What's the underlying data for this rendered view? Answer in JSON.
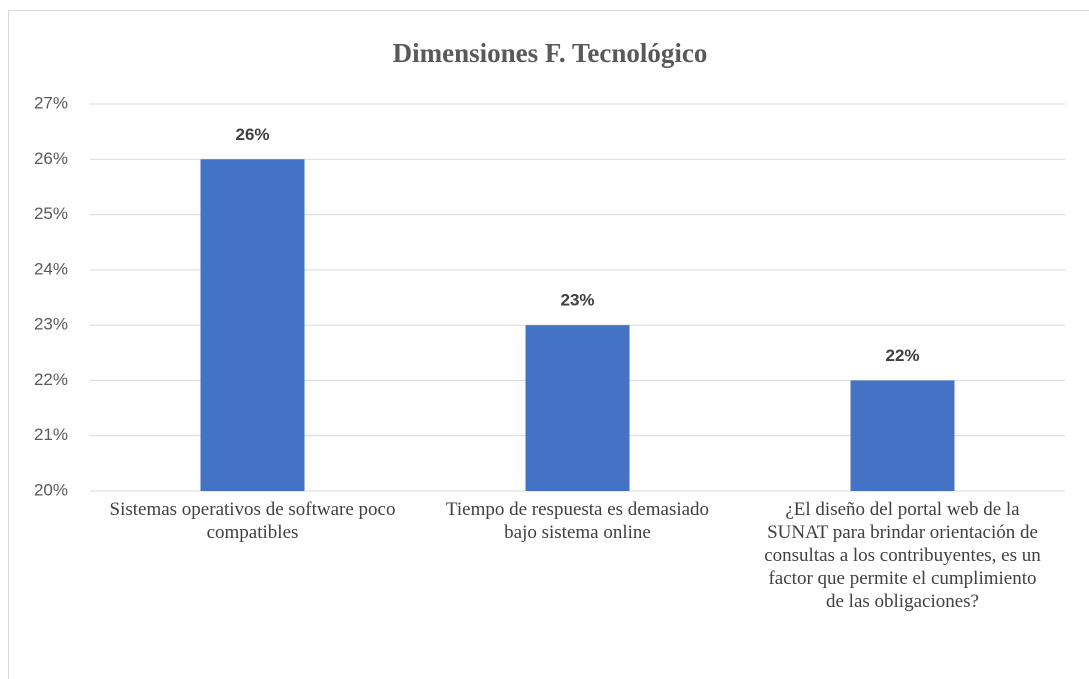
{
  "chart_data": {
    "type": "bar",
    "title": "Dimensiones F. Tecnológico",
    "categories": [
      "Sistemas operativos de software poco compatibles",
      "Tiempo de respuesta es demasiado bajo sistema online",
      "¿El diseño del portal web de la SUNAT para brindar orientación de consultas a los contribuyentes, es un factor que permite el cumplimiento de las obligaciones?"
    ],
    "values": [
      26,
      23,
      22
    ],
    "value_labels": [
      "26%",
      "23%",
      "22%"
    ],
    "color": "#4472c4",
    "ylim": [
      20,
      27
    ],
    "yticks": [
      {
        "value": 20,
        "label": "20%"
      },
      {
        "value": 21,
        "label": "21%"
      },
      {
        "value": 22,
        "label": "22%"
      },
      {
        "value": 23,
        "label": "23%"
      },
      {
        "value": 24,
        "label": "24%"
      },
      {
        "value": 25,
        "label": "25%"
      },
      {
        "value": 26,
        "label": "26%"
      },
      {
        "value": 27,
        "label": "27%"
      }
    ],
    "grid": true
  }
}
